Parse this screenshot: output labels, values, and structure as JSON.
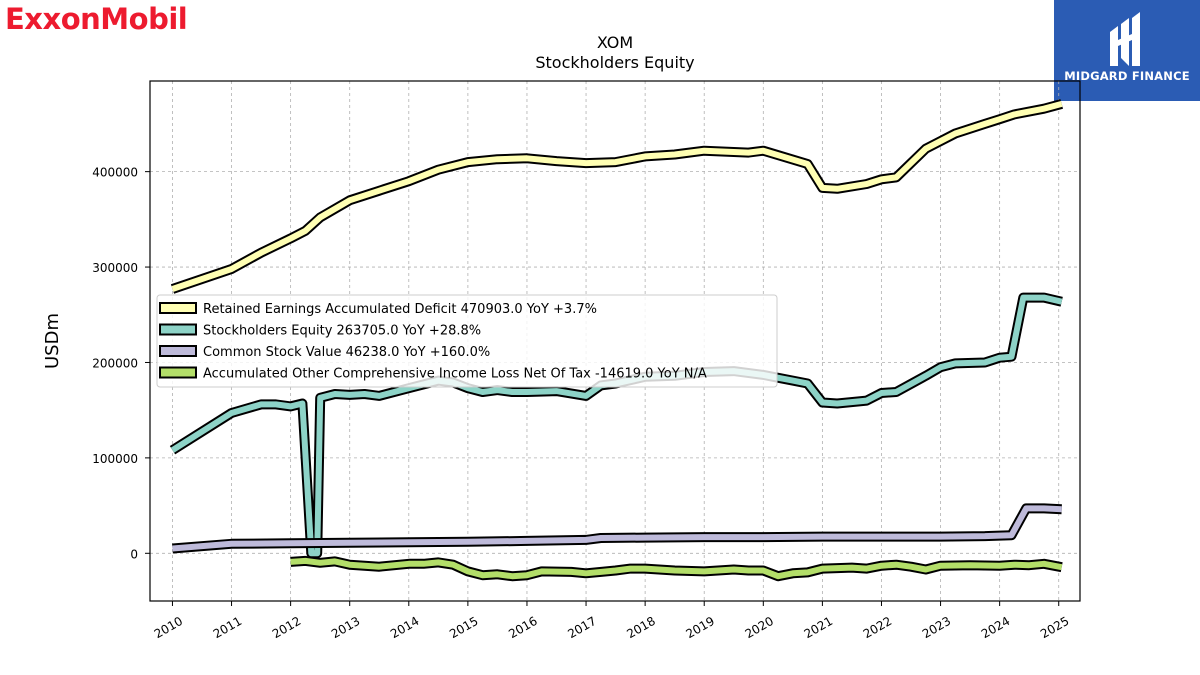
{
  "header": {
    "brand_logo_text": "ExxonMobil",
    "sponsor_logo_text": "MIDGARD FINANCE"
  },
  "colors": {
    "brand_red": "#ed1b2f",
    "sponsor_blue": "#2b5cb4",
    "series": [
      "#ffffb3",
      "#8dd3c7",
      "#bebada",
      "#b3de69"
    ]
  },
  "chart_data": {
    "type": "line",
    "title": "XOM",
    "subtitle": "Stockholders  Equity",
    "xlabel": "",
    "ylabel": "USDm",
    "xlim": [
      2009.62,
      2025.36
    ],
    "ylim": [
      -50000,
      495000
    ],
    "yticks": [
      0,
      100000,
      200000,
      300000,
      400000
    ],
    "xticks": [
      "2010",
      "2011",
      "2012",
      "2013",
      "2014",
      "2015",
      "2016",
      "2017",
      "2018",
      "2019",
      "2020",
      "2021",
      "2022",
      "2023",
      "2024",
      "2025"
    ],
    "grid": true,
    "legend_position": "center-left",
    "series": [
      {
        "name": "Retained Earnings Accumulated Deficit  470903.0 YoY +3.7%",
        "points": [
          [
            2010.0,
            277000
          ],
          [
            2011.0,
            298000
          ],
          [
            2011.5,
            315000
          ],
          [
            2012.0,
            330000
          ],
          [
            2012.25,
            338000
          ],
          [
            2012.5,
            352000
          ],
          [
            2013.0,
            370000
          ],
          [
            2013.5,
            380000
          ],
          [
            2014.0,
            390000
          ],
          [
            2014.5,
            402000
          ],
          [
            2015.0,
            410000
          ],
          [
            2015.5,
            413000
          ],
          [
            2016.0,
            414000
          ],
          [
            2016.5,
            411000
          ],
          [
            2017.0,
            409000
          ],
          [
            2017.5,
            410000
          ],
          [
            2018.0,
            416000
          ],
          [
            2018.5,
            418000
          ],
          [
            2019.0,
            422000
          ],
          [
            2019.75,
            420000
          ],
          [
            2020.0,
            422000
          ],
          [
            2020.75,
            408000
          ],
          [
            2021.0,
            383000
          ],
          [
            2021.25,
            382000
          ],
          [
            2021.75,
            387000
          ],
          [
            2022.0,
            392000
          ],
          [
            2022.25,
            394000
          ],
          [
            2022.75,
            424000
          ],
          [
            2023.0,
            432000
          ],
          [
            2023.25,
            440000
          ],
          [
            2023.75,
            450000
          ],
          [
            2024.0,
            455000
          ],
          [
            2024.25,
            460000
          ],
          [
            2024.75,
            466000
          ],
          [
            2025.05,
            471000
          ]
        ]
      },
      {
        "name": "Stockholders Equity  263705.0 YoY +28.8%",
        "points": [
          [
            2010.0,
            108000
          ],
          [
            2011.0,
            147000
          ],
          [
            2011.5,
            156000
          ],
          [
            2011.75,
            156000
          ],
          [
            2012.0,
            154000
          ],
          [
            2012.2,
            157000
          ],
          [
            2012.35,
            0
          ],
          [
            2012.45,
            0
          ],
          [
            2012.5,
            163000
          ],
          [
            2012.75,
            167000
          ],
          [
            2013.0,
            166000
          ],
          [
            2013.25,
            167000
          ],
          [
            2013.5,
            165000
          ],
          [
            2014.0,
            173000
          ],
          [
            2014.5,
            181000
          ],
          [
            2014.75,
            179000
          ],
          [
            2015.0,
            173000
          ],
          [
            2015.25,
            169000
          ],
          [
            2015.5,
            171000
          ],
          [
            2015.75,
            169000
          ],
          [
            2016.0,
            169000
          ],
          [
            2016.5,
            170000
          ],
          [
            2017.0,
            165000
          ],
          [
            2017.25,
            176000
          ],
          [
            2017.5,
            178000
          ],
          [
            2018.0,
            185000
          ],
          [
            2018.5,
            186000
          ],
          [
            2019.0,
            190000
          ],
          [
            2019.5,
            191000
          ],
          [
            2020.0,
            187000
          ],
          [
            2020.5,
            181000
          ],
          [
            2020.75,
            178000
          ],
          [
            2021.0,
            158000
          ],
          [
            2021.25,
            157000
          ],
          [
            2021.75,
            160000
          ],
          [
            2022.0,
            168000
          ],
          [
            2022.25,
            169000
          ],
          [
            2022.75,
            186000
          ],
          [
            2023.0,
            195000
          ],
          [
            2023.25,
            199000
          ],
          [
            2023.75,
            200000
          ],
          [
            2024.0,
            205000
          ],
          [
            2024.2,
            206000
          ],
          [
            2024.4,
            268000
          ],
          [
            2024.75,
            268000
          ],
          [
            2025.05,
            263705
          ]
        ]
      },
      {
        "name": "Common Stock Value  46238.0 YoY +160.0%",
        "points": [
          [
            2010.0,
            5000
          ],
          [
            2011.0,
            10000
          ],
          [
            2012.0,
            10500
          ],
          [
            2013.0,
            11000
          ],
          [
            2014.0,
            11500
          ],
          [
            2015.0,
            12000
          ],
          [
            2016.0,
            13000
          ],
          [
            2017.0,
            14000
          ],
          [
            2017.25,
            16000
          ],
          [
            2018.0,
            16500
          ],
          [
            2019.0,
            17000
          ],
          [
            2020.0,
            17000
          ],
          [
            2021.0,
            17500
          ],
          [
            2022.0,
            17500
          ],
          [
            2023.0,
            17500
          ],
          [
            2023.75,
            18000
          ],
          [
            2024.0,
            18500
          ],
          [
            2024.2,
            19000
          ],
          [
            2024.45,
            47000
          ],
          [
            2024.75,
            47000
          ],
          [
            2025.05,
            46238
          ]
        ]
      },
      {
        "name": "Accumulated Other Comprehensive Income Loss Net Of Tax  -14619.0 YoY N/A",
        "points": [
          [
            2012.0,
            -9000
          ],
          [
            2012.25,
            -8000
          ],
          [
            2012.5,
            -10000
          ],
          [
            2012.75,
            -8500
          ],
          [
            2013.0,
            -12000
          ],
          [
            2013.5,
            -14000
          ],
          [
            2014.0,
            -11000
          ],
          [
            2014.25,
            -11000
          ],
          [
            2014.5,
            -9500
          ],
          [
            2014.75,
            -12000
          ],
          [
            2015.0,
            -19000
          ],
          [
            2015.25,
            -23000
          ],
          [
            2015.5,
            -22000
          ],
          [
            2015.75,
            -24000
          ],
          [
            2016.0,
            -23000
          ],
          [
            2016.25,
            -19000
          ],
          [
            2016.75,
            -19500
          ],
          [
            2017.0,
            -21000
          ],
          [
            2017.5,
            -18000
          ],
          [
            2017.75,
            -16000
          ],
          [
            2018.0,
            -16000
          ],
          [
            2018.5,
            -18000
          ],
          [
            2019.0,
            -19000
          ],
          [
            2019.5,
            -17000
          ],
          [
            2019.75,
            -18000
          ],
          [
            2020.0,
            -18000
          ],
          [
            2020.25,
            -24000
          ],
          [
            2020.5,
            -21000
          ],
          [
            2020.75,
            -20000
          ],
          [
            2021.0,
            -16000
          ],
          [
            2021.5,
            -15000
          ],
          [
            2021.75,
            -16000
          ],
          [
            2022.0,
            -13000
          ],
          [
            2022.25,
            -12000
          ],
          [
            2022.5,
            -14000
          ],
          [
            2022.75,
            -17000
          ],
          [
            2023.0,
            -13000
          ],
          [
            2023.5,
            -12500
          ],
          [
            2024.0,
            -13000
          ],
          [
            2024.25,
            -12000
          ],
          [
            2024.5,
            -12500
          ],
          [
            2024.75,
            -11000
          ],
          [
            2025.05,
            -14619
          ]
        ]
      }
    ]
  }
}
